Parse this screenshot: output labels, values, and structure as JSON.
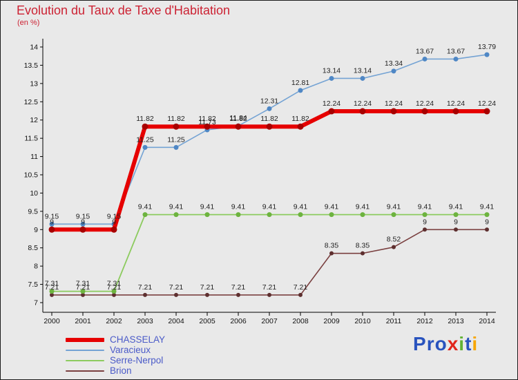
{
  "title": "Evolution du Taux de Taxe d'Habitation",
  "subtitle": "(en %)",
  "chart_data": {
    "type": "line",
    "title": "Evolution du Taux de Taxe d'Habitation",
    "subtitle": "(en %)",
    "xlabel": "",
    "ylabel": "",
    "x": [
      2000,
      2001,
      2002,
      2003,
      2004,
      2005,
      2006,
      2007,
      2008,
      2009,
      2010,
      2011,
      2012,
      2013,
      2014
    ],
    "ylim": [
      7,
      14
    ],
    "ytick_step": 0.5,
    "grid": false,
    "legend_position": "bottom-left",
    "series": [
      {
        "name": "CHASSELAY",
        "color": "#e60000",
        "marker_color": "#a80000",
        "line_width": 6,
        "marker_r": 4.5,
        "values": [
          9,
          9,
          9,
          11.82,
          11.82,
          11.82,
          11.82,
          11.82,
          11.82,
          12.24,
          12.24,
          12.24,
          12.24,
          12.24,
          12.24
        ]
      },
      {
        "name": "Varacieux",
        "color": "#74a3d4",
        "marker_color": "#4f87c5",
        "line_width": 1.6,
        "marker_r": 3.5,
        "values": [
          9.15,
          9.15,
          9.15,
          11.25,
          11.25,
          11.73,
          11.84,
          12.31,
          12.81,
          13.14,
          13.14,
          13.34,
          13.67,
          13.67,
          13.79
        ]
      },
      {
        "name": "Serre-Nerpol",
        "color": "#8ccb5e",
        "marker_color": "#6db33f",
        "line_width": 1.8,
        "marker_r": 3.5,
        "values": [
          7.31,
          7.31,
          7.31,
          9.41,
          9.41,
          9.41,
          9.41,
          9.41,
          9.41,
          9.41,
          9.41,
          9.41,
          9.41,
          9.41,
          9.41
        ]
      },
      {
        "name": "Brion",
        "color": "#7a4040",
        "marker_color": "#5e2f2f",
        "line_width": 1.6,
        "marker_r": 3,
        "values": [
          7.21,
          7.21,
          7.21,
          7.21,
          7.21,
          7.21,
          7.21,
          7.21,
          7.21,
          8.35,
          8.35,
          8.52,
          9,
          9,
          9
        ]
      }
    ]
  },
  "logo": {
    "text": "Proxiti",
    "letters": [
      {
        "ch": "P",
        "color": "#2953be"
      },
      {
        "ch": "r",
        "color": "#2953be"
      },
      {
        "ch": "o",
        "color": "#2953be"
      },
      {
        "ch": "x",
        "color": "#e1261c"
      },
      {
        "ch": "i",
        "color": "#61b232"
      },
      {
        "ch": "t",
        "color": "#2953be"
      },
      {
        "ch": "i",
        "color": "#f7a600"
      }
    ]
  }
}
